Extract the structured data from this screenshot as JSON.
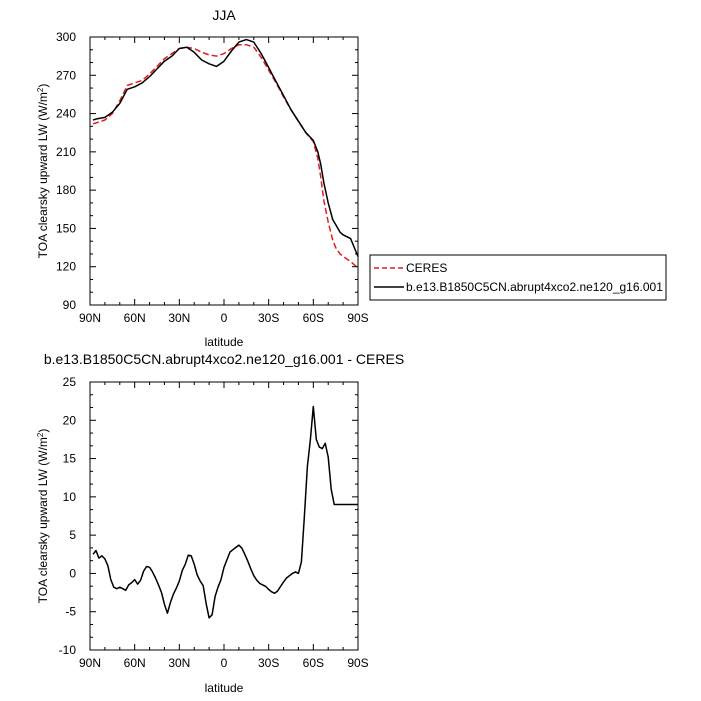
{
  "chart_data": [
    {
      "type": "line",
      "title": "JJA",
      "xlabel": "latitude",
      "ylabel": "TOA clearsky upward LW (W/m²)",
      "ylabel_main": "TOA clearsky upward LW (W/m",
      "ylabel_sup": "2",
      "ylabel_end": ")",
      "xlim": [
        -90,
        90
      ],
      "ylim": [
        90,
        300
      ],
      "xticks": [
        -90,
        -60,
        -30,
        0,
        30,
        60,
        90
      ],
      "xtick_labels": [
        "90N",
        "60N",
        "30N",
        "0",
        "30S",
        "60S",
        "90S"
      ],
      "yticks": [
        90,
        120,
        150,
        180,
        210,
        240,
        270,
        300
      ],
      "ytick_labels": [
        "90",
        "120",
        "150",
        "180",
        "210",
        "240",
        "270",
        "300"
      ],
      "legend": "right",
      "series": [
        {
          "name": "CERES",
          "color": "#e41a1c",
          "dash": "dashed",
          "x": [
            -88,
            -85,
            -80,
            -75,
            -70,
            -65,
            -60,
            -55,
            -50,
            -45,
            -40,
            -35,
            -30,
            -25,
            -20,
            -15,
            -10,
            -5,
            0,
            5,
            10,
            15,
            20,
            25,
            30,
            35,
            40,
            45,
            50,
            55,
            60,
            63,
            65,
            67,
            70,
            73,
            75,
            78,
            80,
            85,
            90
          ],
          "y": [
            232,
            233,
            235,
            240,
            250,
            262,
            264,
            266,
            271,
            277,
            283,
            287,
            291,
            292,
            291,
            288,
            286,
            285,
            287,
            291,
            294,
            294,
            292,
            284,
            274,
            264,
            253,
            243,
            234,
            225,
            218,
            205,
            190,
            172,
            155,
            141,
            135,
            130,
            128,
            124,
            119
          ]
        },
        {
          "name": "b.e13.B1850C5CN.abrupt4xco2.ne120_g16.001",
          "color": "#000000",
          "dash": "solid",
          "x": [
            -88,
            -85,
            -80,
            -75,
            -70,
            -65,
            -60,
            -55,
            -50,
            -45,
            -40,
            -35,
            -30,
            -25,
            -20,
            -15,
            -10,
            -5,
            0,
            5,
            10,
            15,
            20,
            25,
            30,
            35,
            40,
            45,
            50,
            55,
            60,
            63,
            65,
            67,
            70,
            73,
            75,
            78,
            80,
            85,
            90
          ],
          "y": [
            235,
            236,
            237,
            241,
            248,
            259,
            261,
            264,
            269,
            275,
            281,
            285,
            291,
            292,
            288,
            282,
            279,
            277,
            281,
            289,
            296,
            298,
            296,
            287,
            276,
            265,
            254,
            243,
            234,
            225,
            219,
            210,
            200,
            186,
            170,
            157,
            153,
            147,
            145,
            142,
            128
          ]
        }
      ]
    },
    {
      "type": "line",
      "title": "b.e13.B1850C5CN.abrupt4xco2.ne120_g16.001 - CERES",
      "xlabel": "latitude",
      "ylabel": "TOA clearsky upward LW (W/m²)",
      "ylabel_main": "TOA clearsky upward LW (W/m",
      "ylabel_sup": "2",
      "ylabel_end": ")",
      "xlim": [
        -90,
        90
      ],
      "ylim": [
        -10,
        25
      ],
      "xticks": [
        -90,
        -60,
        -30,
        0,
        30,
        60,
        90
      ],
      "xtick_labels": [
        "90N",
        "60N",
        "30N",
        "0",
        "30S",
        "60S",
        "90S"
      ],
      "yticks": [
        -10,
        -5,
        0,
        5,
        10,
        15,
        20,
        25
      ],
      "ytick_labels": [
        "-10",
        "-5",
        "0",
        "5",
        "10",
        "15",
        "20",
        "25"
      ],
      "series": [
        {
          "name": "",
          "color": "#000000",
          "dash": "solid",
          "x": [
            -88,
            -86,
            -84,
            -82,
            -80,
            -78,
            -76,
            -74,
            -72,
            -70,
            -68,
            -66,
            -64,
            -62,
            -60,
            -58,
            -56,
            -54,
            -52,
            -50,
            -48,
            -46,
            -44,
            -42,
            -40,
            -38,
            -36,
            -34,
            -32,
            -30,
            -28,
            -26,
            -24,
            -22,
            -20,
            -18,
            -16,
            -14,
            -12,
            -10,
            -8,
            -6,
            -4,
            -2,
            0,
            2,
            4,
            6,
            8,
            10,
            12,
            14,
            16,
            18,
            20,
            22,
            24,
            26,
            28,
            30,
            32,
            34,
            36,
            38,
            40,
            42,
            44,
            46,
            48,
            50,
            52,
            54,
            56,
            58,
            60,
            62,
            64,
            66,
            68,
            70,
            72,
            74,
            76,
            78,
            80,
            82,
            84,
            86,
            88,
            90
          ],
          "y": [
            2.5,
            3.0,
            2.0,
            2.3,
            1.9,
            1.0,
            -0.8,
            -1.8,
            -2.0,
            -1.8,
            -2.0,
            -2.2,
            -1.5,
            -1.2,
            -0.8,
            -1.4,
            -0.9,
            0.3,
            0.9,
            0.8,
            0.2,
            -0.6,
            -1.5,
            -2.5,
            -4.0,
            -5.2,
            -3.8,
            -2.7,
            -1.9,
            -1.0,
            0.4,
            1.2,
            2.4,
            2.3,
            1.2,
            -0.2,
            -1.0,
            -1.6,
            -3.9,
            -5.8,
            -5.4,
            -3.0,
            -1.8,
            -0.8,
            0.8,
            1.8,
            2.8,
            3.1,
            3.4,
            3.7,
            3.3,
            2.5,
            1.6,
            0.6,
            -0.3,
            -0.9,
            -1.3,
            -1.5,
            -1.7,
            -2.1,
            -2.4,
            -2.6,
            -2.3,
            -1.7,
            -1.1,
            -0.6,
            -0.3,
            0.0,
            0.2,
            0.0,
            1.5,
            7.5,
            14.0,
            17.5,
            21.8,
            17.5,
            16.5,
            16.3,
            17.0,
            15.2,
            11.0,
            9.0,
            9.0,
            9.0,
            9.0,
            9.0,
            9.0,
            9.0,
            9.0,
            9.0
          ]
        }
      ]
    }
  ]
}
